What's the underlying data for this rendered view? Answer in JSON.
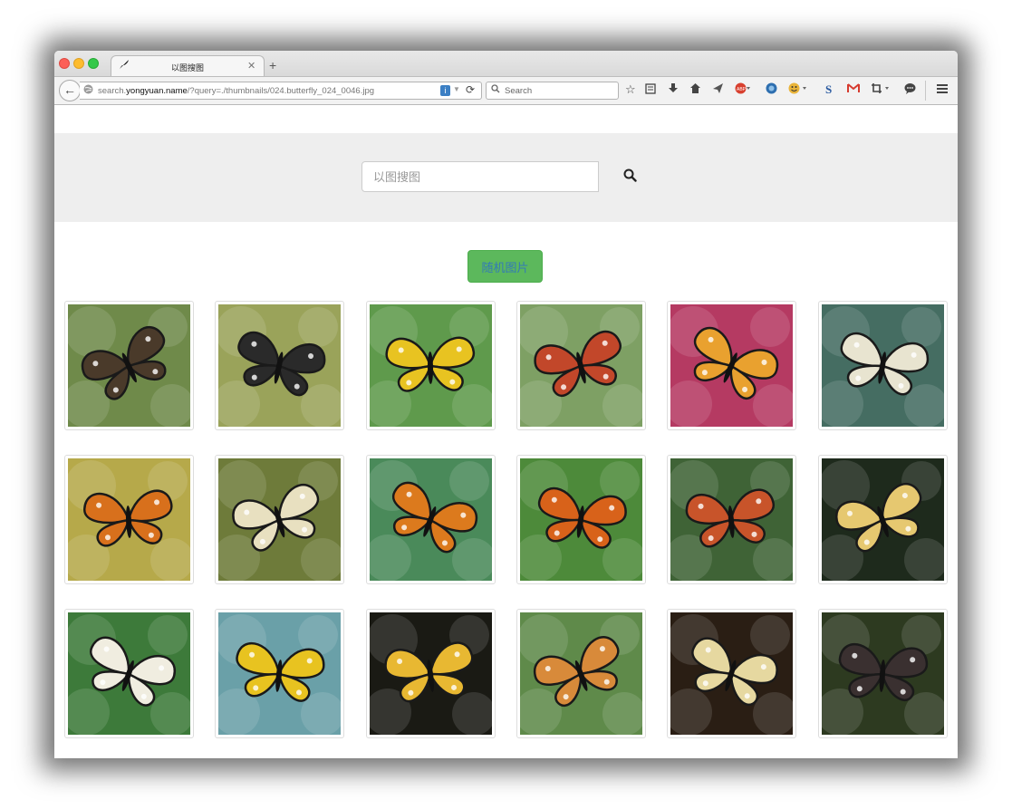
{
  "browser": {
    "tab_title": "以图搜图",
    "url_prefix": "search.",
    "url_domain": "yongyuan.name",
    "url_path": "/?query=./thumbnails/024.butterfly_024_0046.jpg",
    "search_placeholder": "Search",
    "toolbar_icons": [
      "bookmark-star-icon",
      "reading-list-icon",
      "download-icon",
      "home-icon",
      "send-icon",
      "abp-icon",
      "firefox-sync-icon",
      "emoji-icon",
      "s-extension-icon",
      "gmail-icon",
      "crop-icon",
      "chat-icon",
      "menu-icon"
    ]
  },
  "page": {
    "search_placeholder": "以图搜图",
    "random_button": "随机图片",
    "accent_color": "#5cb85c",
    "images": [
      {
        "name": "butterfly-1",
        "icon": "brown-white-butterfly",
        "bg": "#6f8a4a",
        "fill": "#4a3a2a"
      },
      {
        "name": "butterfly-2",
        "icon": "black-swallowtail",
        "bg": "#9aa35a",
        "fill": "#2a2a2a"
      },
      {
        "name": "butterfly-3",
        "icon": "birdwing-butterfly",
        "bg": "#5f9a4c",
        "fill": "#e8c321"
      },
      {
        "name": "butterfly-4",
        "icon": "red-black-butterfly",
        "bg": "#7ea064",
        "fill": "#c2472a"
      },
      {
        "name": "butterfly-5",
        "icon": "monarch-on-pink-flowers",
        "bg": "#b53a62",
        "fill": "#e9a12f"
      },
      {
        "name": "butterfly-6",
        "icon": "white-butterfly-on-flower",
        "bg": "#456d62",
        "fill": "#e8e4d0"
      },
      {
        "name": "butterfly-7",
        "icon": "monarch-on-leaves",
        "bg": "#b6a94a",
        "fill": "#d8701c"
      },
      {
        "name": "butterfly-8",
        "icon": "tree-nymph-butterfly",
        "bg": "#6e7b3a",
        "fill": "#e8e0c0"
      },
      {
        "name": "butterfly-9",
        "icon": "monarch-side-view",
        "bg": "#4a8a5a",
        "fill": "#dc7a1d"
      },
      {
        "name": "butterfly-10",
        "icon": "monarch-on-orange-flower",
        "bg": "#4d8a3a",
        "fill": "#d8621a"
      },
      {
        "name": "butterfly-11",
        "icon": "red-admiral-butterfly",
        "bg": "#3f6336",
        "fill": "#c8542a"
      },
      {
        "name": "butterfly-12",
        "icon": "monarch-dark-bg",
        "bg": "#1e2a1c",
        "fill": "#e6c870"
      },
      {
        "name": "butterfly-13",
        "icon": "paper-kite-butterfly",
        "bg": "#3d7a3a",
        "fill": "#f0ede0"
      },
      {
        "name": "butterfly-14",
        "icon": "yellow-swallowtail",
        "bg": "#6aa0a8",
        "fill": "#e8c320"
      },
      {
        "name": "butterfly-15",
        "icon": "yellow-black-butterfly",
        "bg": "#1a1a14",
        "fill": "#e8b832"
      },
      {
        "name": "butterfly-16",
        "icon": "painted-lady-butterfly",
        "bg": "#5f8a4a",
        "fill": "#d88a3a"
      },
      {
        "name": "butterfly-17",
        "icon": "tiger-swallowtail",
        "bg": "#2a1e14",
        "fill": "#e6d8a0"
      },
      {
        "name": "butterfly-18",
        "icon": "pink-black-swallowtail",
        "bg": "#2d3a20",
        "fill": "#3a3030"
      }
    ]
  }
}
